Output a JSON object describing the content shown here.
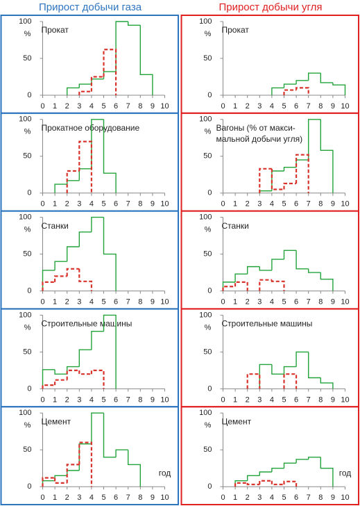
{
  "column_titles": [
    "Прирост добычи газа",
    "Прирост добычи угля"
  ],
  "chart_data": [
    {
      "type": "step",
      "title": "Прокат",
      "y_label": "%",
      "xlim": [
        0,
        10
      ],
      "xticks": [
        0,
        1,
        2,
        3,
        4,
        5,
        6,
        7,
        8,
        9,
        10
      ],
      "ylim": [
        0,
        100
      ],
      "yticks": [
        0,
        50,
        100
      ],
      "series": [
        {
          "color": "#22a33a",
          "style": "solid",
          "bins": [
            2,
            3,
            4,
            5,
            6,
            7,
            8,
            9
          ],
          "values": [
            10,
            15,
            22,
            32,
            100,
            95,
            28
          ]
        },
        {
          "color": "#d9342b",
          "style": "dashed",
          "bins": [
            3,
            4,
            5,
            6
          ],
          "values": [
            5,
            25,
            62
          ]
        }
      ]
    },
    {
      "type": "step",
      "title": "Прокат",
      "y_label": "%",
      "xlim": [
        0,
        10
      ],
      "xticks": [
        0,
        1,
        2,
        3,
        4,
        5,
        6,
        7,
        8,
        9,
        10
      ],
      "ylim": [
        0,
        100
      ],
      "yticks": [
        0,
        50,
        100
      ],
      "series": [
        {
          "color": "#22a33a",
          "style": "solid",
          "bins": [
            4,
            5,
            6,
            7,
            8,
            9,
            10
          ],
          "values": [
            10,
            15,
            20,
            30,
            17,
            14
          ]
        },
        {
          "color": "#d9342b",
          "style": "dashed",
          "bins": [
            5,
            6,
            7
          ],
          "values": [
            7,
            10
          ]
        }
      ]
    },
    {
      "type": "step",
      "title": "Прокатное  оборудование",
      "y_label": "%",
      "xlim": [
        0,
        10
      ],
      "xticks": [
        0,
        1,
        2,
        3,
        4,
        5,
        6,
        7,
        8,
        9,
        10
      ],
      "ylim": [
        0,
        100
      ],
      "yticks": [
        0,
        50,
        100
      ],
      "series": [
        {
          "color": "#22a33a",
          "style": "solid",
          "bins": [
            1,
            2,
            3,
            4,
            5,
            6
          ],
          "values": [
            12,
            17,
            33,
            100,
            27
          ]
        },
        {
          "color": "#d9342b",
          "style": "dashed",
          "bins": [
            2,
            3,
            4
          ],
          "values": [
            30,
            70
          ]
        }
      ]
    },
    {
      "type": "step",
      "title": [
        "Вагоны (% от макси-",
        "мальной добычи угля)"
      ],
      "y_label": "%",
      "xlim": [
        0,
        10
      ],
      "xticks": [
        0,
        1,
        2,
        3,
        4,
        5,
        6,
        7,
        8,
        9,
        10
      ],
      "ylim": [
        0,
        100
      ],
      "yticks": [
        0,
        50,
        100
      ],
      "series": [
        {
          "color": "#22a33a",
          "style": "solid",
          "bins": [
            3,
            4,
            5,
            6,
            7,
            8,
            9
          ],
          "values": [
            3,
            30,
            35,
            45,
            100,
            58
          ]
        },
        {
          "color": "#d9342b",
          "style": "dashed",
          "bins": [
            3,
            4,
            5,
            6,
            7
          ],
          "values": [
            33,
            5,
            13,
            52
          ]
        }
      ]
    },
    {
      "type": "step",
      "title": "Станки",
      "y_label": "%",
      "xlim": [
        0,
        10
      ],
      "xticks": [
        0,
        1,
        2,
        3,
        4,
        5,
        6,
        7,
        8,
        9,
        10
      ],
      "ylim": [
        0,
        100
      ],
      "yticks": [
        0,
        50,
        100
      ],
      "series": [
        {
          "color": "#22a33a",
          "style": "solid",
          "bins": [
            0,
            1,
            2,
            3,
            4,
            5,
            6
          ],
          "values": [
            28,
            40,
            60,
            80,
            100,
            50
          ]
        },
        {
          "color": "#d9342b",
          "style": "dashed",
          "bins": [
            0,
            1,
            2,
            3,
            4
          ],
          "values": [
            12,
            20,
            30,
            13
          ]
        }
      ]
    },
    {
      "type": "step",
      "title": "Станки",
      "y_label": "%",
      "xlim": [
        0,
        10
      ],
      "xticks": [
        0,
        1,
        2,
        3,
        4,
        5,
        6,
        7,
        8,
        9,
        10
      ],
      "ylim": [
        0,
        100
      ],
      "yticks": [
        0,
        50,
        100
      ],
      "series": [
        {
          "color": "#22a33a",
          "style": "solid",
          "bins": [
            0,
            1,
            2,
            3,
            4,
            5,
            6,
            7,
            8,
            9
          ],
          "values": [
            12,
            23,
            33,
            28,
            43,
            55,
            30,
            25,
            16
          ]
        },
        {
          "color": "#d9342b",
          "style": "dashed",
          "bins": [
            0,
            1,
            2,
            3,
            4,
            5
          ],
          "values": [
            6,
            12,
            null,
            15,
            13
          ]
        }
      ]
    },
    {
      "type": "step",
      "title": "Строительные  машины",
      "y_label": "%",
      "xlim": [
        0,
        10
      ],
      "xticks": [
        0,
        1,
        2,
        3,
        4,
        5,
        6,
        7,
        8,
        9,
        10
      ],
      "ylim": [
        0,
        100
      ],
      "yticks": [
        0,
        50,
        100
      ],
      "series": [
        {
          "color": "#22a33a",
          "style": "solid",
          "bins": [
            0,
            1,
            2,
            3,
            4,
            5,
            6
          ],
          "values": [
            26,
            20,
            30,
            53,
            78,
            100
          ]
        },
        {
          "color": "#d9342b",
          "style": "dashed",
          "bins": [
            0,
            1,
            2,
            3,
            4,
            5
          ],
          "values": [
            5,
            12,
            25,
            20,
            25
          ]
        }
      ]
    },
    {
      "type": "step",
      "title": "Строительные  машины",
      "y_label": "%",
      "xlim": [
        0,
        10
      ],
      "xticks": [
        0,
        1,
        2,
        3,
        4,
        5,
        6,
        7,
        8,
        9,
        10
      ],
      "ylim": [
        0,
        100
      ],
      "yticks": [
        0,
        50,
        100
      ],
      "series": [
        {
          "color": "#22a33a",
          "style": "solid",
          "bins": [
            3,
            4,
            5,
            6,
            7,
            8,
            9
          ],
          "values": [
            33,
            20,
            30,
            50,
            15,
            8
          ]
        },
        {
          "color": "#d9342b",
          "style": "dashed",
          "bins": [
            2,
            3,
            4,
            5,
            6
          ],
          "values": [
            20,
            null,
            null,
            20
          ]
        }
      ]
    },
    {
      "type": "step",
      "title": "Цемент",
      "y_label": "%",
      "x_label": "год",
      "xlim": [
        0,
        10
      ],
      "xticks": [
        0,
        1,
        2,
        3,
        4,
        5,
        6,
        7,
        8,
        9,
        10
      ],
      "ylim": [
        0,
        100
      ],
      "yticks": [
        0,
        50,
        100
      ],
      "series": [
        {
          "color": "#22a33a",
          "style": "solid",
          "bins": [
            0,
            1,
            2,
            3,
            4,
            5,
            6,
            7,
            8
          ],
          "values": [
            8,
            15,
            22,
            58,
            100,
            40,
            50,
            30
          ]
        },
        {
          "color": "#d9342b",
          "style": "dashed",
          "bins": [
            0,
            1,
            2,
            3,
            4
          ],
          "values": [
            12,
            5,
            30,
            60
          ]
        }
      ]
    },
    {
      "type": "step",
      "title": "Цемент",
      "y_label": "%",
      "x_label": "год",
      "xlim": [
        0,
        10
      ],
      "xticks": [
        0,
        1,
        2,
        3,
        4,
        5,
        6,
        7,
        8,
        9,
        10
      ],
      "ylim": [
        0,
        100
      ],
      "yticks": [
        0,
        50,
        100
      ],
      "series": [
        {
          "color": "#22a33a",
          "style": "solid",
          "bins": [
            1,
            2,
            3,
            4,
            5,
            6,
            7,
            8,
            9
          ],
          "values": [
            8,
            15,
            20,
            25,
            32,
            37,
            40,
            25
          ]
        },
        {
          "color": "#d9342b",
          "style": "dashed",
          "bins": [
            1,
            2,
            3,
            4,
            5,
            6
          ],
          "values": [
            5,
            3,
            8,
            3,
            7
          ]
        }
      ]
    }
  ]
}
